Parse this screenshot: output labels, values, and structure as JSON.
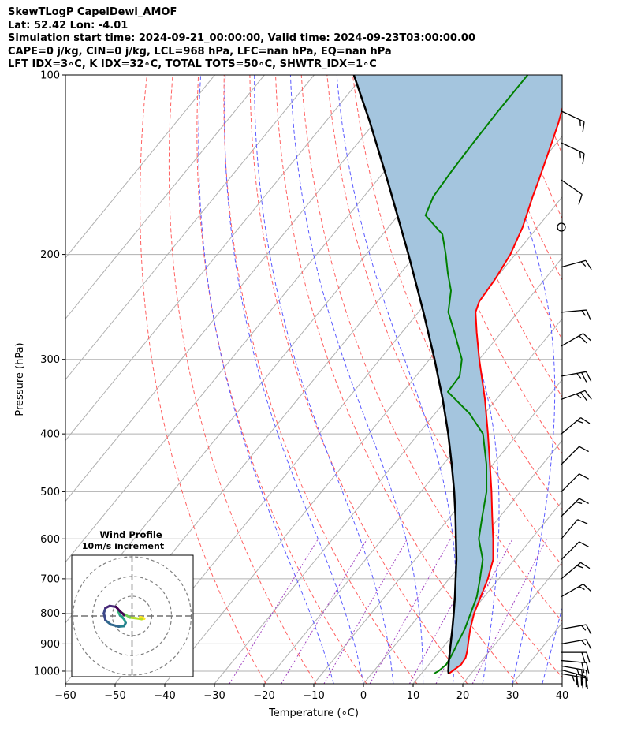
{
  "header": {
    "line1": "SkewTLogP CapelDewi_AMOF",
    "line2": "Lat: 52.42   Lon: -4.01",
    "line3": "Simulation start time: 2024-09-21_00:00:00, Valid time: 2024-09-23T03:00:00.00",
    "line4": "CAPE=0 j/kg, CIN=0 j/kg, LCL=968 hPa, LFC=nan hPa, EQ=nan hPa",
    "line5": "LFT IDX=3∘C, K IDX=32∘C, TOTAL TOTS=50∘C, SHWTR_IDX=1∘C"
  },
  "chart_data": [
    {
      "type": "line",
      "subtype": "skew-T log-P",
      "xlabel": "Temperature (∘C)",
      "ylabel": "Pressure (hPa)",
      "xlim": [
        -60,
        40
      ],
      "ylim": [
        1050,
        100
      ],
      "y_scale": "log",
      "x_ticks": [
        -60,
        -50,
        -40,
        -30,
        -20,
        -10,
        0,
        10,
        20,
        30,
        40
      ],
      "x_tick_labels": [
        "−60",
        "−50",
        "−40",
        "−30",
        "−20",
        "−10",
        "0",
        "10",
        "20",
        "30",
        "40"
      ],
      "y_ticks": [
        100,
        200,
        300,
        400,
        500,
        600,
        700,
        800,
        900,
        1000
      ],
      "y_tick_labels": [
        "100",
        "200",
        "300",
        "400",
        "500",
        "600",
        "700",
        "800",
        "900",
        "1000"
      ],
      "grid": true,
      "skew_isotherm_offsets": [
        -130,
        -120,
        -110,
        -100,
        -90,
        -80,
        -70,
        -60,
        -50,
        -40,
        -30,
        -20,
        -10,
        0,
        10,
        20,
        30,
        40
      ],
      "dry_adiabat_thetas_K": [
        250,
        260,
        270,
        280,
        290,
        300,
        310,
        320,
        330,
        340,
        350,
        360,
        370,
        380,
        390,
        400
      ],
      "moist_adiabat_start_temps_C": [
        -6,
        0,
        6,
        12,
        18,
        24,
        30,
        36,
        42
      ],
      "mixing_ratio_lines": [
        0.0004,
        0.001,
        0.002,
        0.004,
        0.007,
        0.01,
        0.016
      ],
      "series": [
        {
          "role": "temperature",
          "color": "#ff0000",
          "points": [
            [
              1010,
              15.5
            ],
            [
              1000,
              15.8
            ],
            [
              975,
              16.5
            ],
            [
              950,
              16.3
            ],
            [
              925,
              15.5
            ],
            [
              900,
              14.5
            ],
            [
              850,
              12.5
            ],
            [
              800,
              10.7
            ],
            [
              750,
              9.3
            ],
            [
              700,
              7.8
            ],
            [
              650,
              5.7
            ],
            [
              600,
              2.3
            ],
            [
              550,
              -1.6
            ],
            [
              500,
              -5.8
            ],
            [
              450,
              -10.6
            ],
            [
              400,
              -16.0
            ],
            [
              350,
              -22.3
            ],
            [
              300,
              -30.0
            ],
            [
              270,
              -35.0
            ],
            [
              250,
              -38.5
            ],
            [
              240,
              -39.5
            ],
            [
              220,
              -40.0
            ],
            [
              200,
              -41.0
            ],
            [
              180,
              -43.0
            ],
            [
              160,
              -46.0
            ],
            [
              150,
              -47.5
            ],
            [
              130,
              -51.0
            ],
            [
              120,
              -53.0
            ],
            [
              110,
              -55.5
            ],
            [
              100,
              -58.5
            ]
          ]
        },
        {
          "role": "dewpoint",
          "color": "#008000",
          "points": [
            [
              1010,
              12.5
            ],
            [
              1000,
              13.0
            ],
            [
              975,
              13.5
            ],
            [
              950,
              13.2
            ],
            [
              925,
              12.8
            ],
            [
              900,
              12.3
            ],
            [
              850,
              11.4
            ],
            [
              800,
              10.0
            ],
            [
              750,
              8.5
            ],
            [
              700,
              6.2
            ],
            [
              650,
              3.6
            ],
            [
              600,
              -0.6
            ],
            [
              550,
              -3.6
            ],
            [
              500,
              -6.8
            ],
            [
              450,
              -11.3
            ],
            [
              400,
              -17.0
            ],
            [
              370,
              -23.0
            ],
            [
              340,
              -31.0
            ],
            [
              320,
              -31.2
            ],
            [
              300,
              -33.5
            ],
            [
              270,
              -39.5
            ],
            [
              250,
              -44.0
            ],
            [
              230,
              -47.0
            ],
            [
              215,
              -50.5
            ],
            [
              200,
              -54.0
            ],
            [
              185,
              -58.0
            ],
            [
              172,
              -64.5
            ],
            [
              160,
              -66.0
            ],
            [
              145,
              -66.5
            ],
            [
              130,
              -66.8
            ],
            [
              115,
              -67.0
            ],
            [
              100,
              -67.0
            ]
          ]
        },
        {
          "role": "parcel",
          "color": "#000000",
          "points": [
            [
              1010,
              15.5
            ],
            [
              1000,
              15.0
            ],
            [
              968,
              13.7
            ],
            [
              950,
              13.0
            ],
            [
              900,
              11.0
            ],
            [
              850,
              8.9
            ],
            [
              800,
              6.6
            ],
            [
              750,
              4.1
            ],
            [
              700,
              1.3
            ],
            [
              650,
              -1.7
            ],
            [
              600,
              -5.2
            ],
            [
              550,
              -9.0
            ],
            [
              500,
              -13.3
            ],
            [
              450,
              -18.3
            ],
            [
              400,
              -24.0
            ],
            [
              350,
              -30.8
            ],
            [
              300,
              -39.0
            ],
            [
              250,
              -49.0
            ],
            [
              200,
              -61.5
            ],
            [
              150,
              -78.0
            ],
            [
              120,
              -91.0
            ],
            [
              100,
              -102.0
            ]
          ]
        }
      ],
      "cape_cin_shading": "#a4c5de",
      "wind_barbs_knots": [
        {
          "p": 1010,
          "speed": 35,
          "dir": 100
        },
        {
          "p": 995,
          "speed": 30,
          "dir": 105
        },
        {
          "p": 980,
          "speed": 25,
          "dir": 100
        },
        {
          "p": 960,
          "speed": 20,
          "dir": 95
        },
        {
          "p": 930,
          "speed": 20,
          "dir": 90
        },
        {
          "p": 900,
          "speed": 15,
          "dir": 80
        },
        {
          "p": 850,
          "speed": 15,
          "dir": 80
        },
        {
          "p": 750,
          "speed": 15,
          "dir": 60
        },
        {
          "p": 700,
          "speed": 15,
          "dir": 50
        },
        {
          "p": 650,
          "speed": 10,
          "dir": 45
        },
        {
          "p": 600,
          "speed": 10,
          "dir": 40
        },
        {
          "p": 550,
          "speed": 15,
          "dir": 45
        },
        {
          "p": 500,
          "speed": 10,
          "dir": 45
        },
        {
          "p": 450,
          "speed": 10,
          "dir": 45
        },
        {
          "p": 400,
          "speed": 15,
          "dir": 50
        },
        {
          "p": 350,
          "speed": 25,
          "dir": 70
        },
        {
          "p": 320,
          "speed": 25,
          "dir": 80
        },
        {
          "p": 285,
          "speed": 20,
          "dir": 60
        },
        {
          "p": 250,
          "speed": 15,
          "dir": 85
        },
        {
          "p": 210,
          "speed": 15,
          "dir": 75
        },
        {
          "p": 180,
          "speed": 0,
          "dir": 0
        },
        {
          "p": 150,
          "speed": 10,
          "dir": 125
        },
        {
          "p": 130,
          "speed": 15,
          "dir": 115
        },
        {
          "p": 115,
          "speed": 15,
          "dir": 115
        }
      ]
    },
    {
      "type": "line",
      "subtype": "hodograph",
      "title": "Wind Profile",
      "subtitle": "10m/s increment",
      "ring_spacing_ms": 10,
      "rings": 3,
      "points_uv_ms": [
        [
          1.5,
          -0.2
        ],
        [
          2.0,
          -0.3
        ],
        [
          2.3,
          -0.5
        ],
        [
          1.8,
          -0.6
        ],
        [
          0.6,
          -0.4
        ],
        [
          -0.4,
          -0.3
        ],
        [
          -1.2,
          0.2
        ],
        [
          -2.0,
          0.6
        ],
        [
          -2.6,
          0.9
        ],
        [
          -2.3,
          0.2
        ],
        [
          -1.5,
          -0.6
        ],
        [
          -1.2,
          -1.3
        ],
        [
          -1.5,
          -1.9
        ],
        [
          -2.5,
          -2.0
        ],
        [
          -4.0,
          -1.6
        ],
        [
          -5.0,
          -0.8
        ],
        [
          -5.3,
          0.5
        ],
        [
          -5.0,
          1.5
        ],
        [
          -4.2,
          1.9
        ],
        [
          -3.0,
          1.7
        ],
        [
          -2.3,
          0.9
        ],
        [
          -1.5,
          0.2
        ]
      ],
      "colormap": "viridis"
    }
  ]
}
